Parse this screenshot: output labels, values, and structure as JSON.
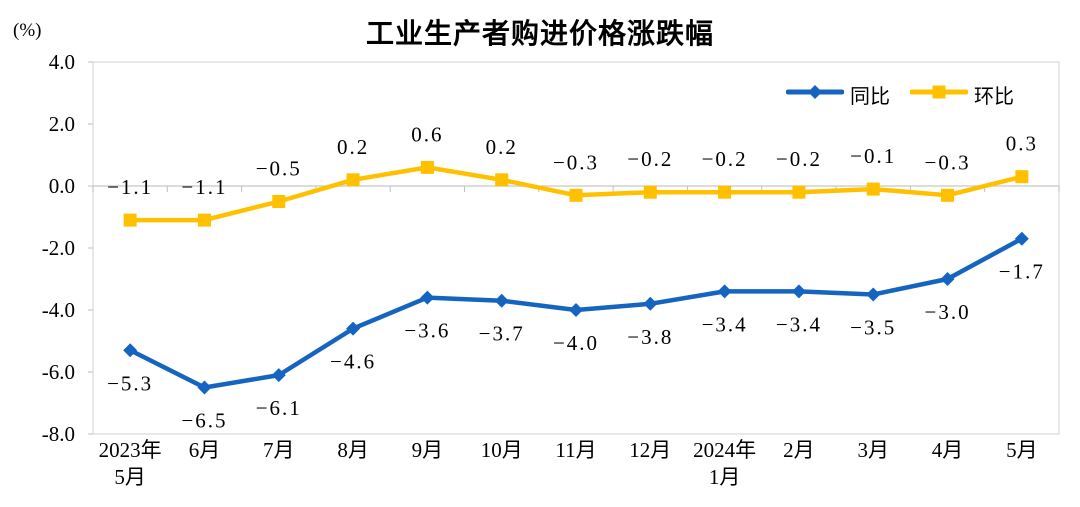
{
  "chart_data": {
    "type": "line",
    "title": "工业生产者购进价格涨跌幅",
    "unit_label": "(%)",
    "categories": [
      "2023年\n5月",
      "6月",
      "7月",
      "8月",
      "9月",
      "10月",
      "11月",
      "12月",
      "2024年\n1月",
      "2月",
      "3月",
      "4月",
      "5月"
    ],
    "series": [
      {
        "name": "同比",
        "marker": "diamond",
        "color": "#1565C0",
        "label_side": "below",
        "values": [
          -5.3,
          -6.5,
          -6.1,
          -4.6,
          -3.6,
          -3.7,
          -4.0,
          -3.8,
          -3.4,
          -3.4,
          -3.5,
          -3.0,
          -1.7
        ]
      },
      {
        "name": "环比",
        "marker": "square",
        "color": "#FFC000",
        "label_side": "above",
        "values": [
          -1.1,
          -1.1,
          -0.5,
          0.2,
          0.6,
          0.2,
          -0.3,
          -0.2,
          -0.2,
          -0.2,
          -0.1,
          -0.3,
          0.3
        ]
      }
    ],
    "ylim": [
      -8.0,
      4.0
    ],
    "yticks": [
      4.0,
      2.0,
      0.0,
      -2.0,
      -4.0,
      -6.0,
      -8.0
    ],
    "ytick_labels": [
      "4.0",
      "2.0",
      "0.0",
      "-2.0",
      "-4.0",
      "-6.0",
      "-8.0"
    ],
    "grid": "zero-axis-only",
    "legend_position": "top-right"
  },
  "colors": {
    "plot_border": "#D9D9D9",
    "zero_axis": "#C6C6C6",
    "tick": "#BFBFBF",
    "text": "#000000"
  }
}
